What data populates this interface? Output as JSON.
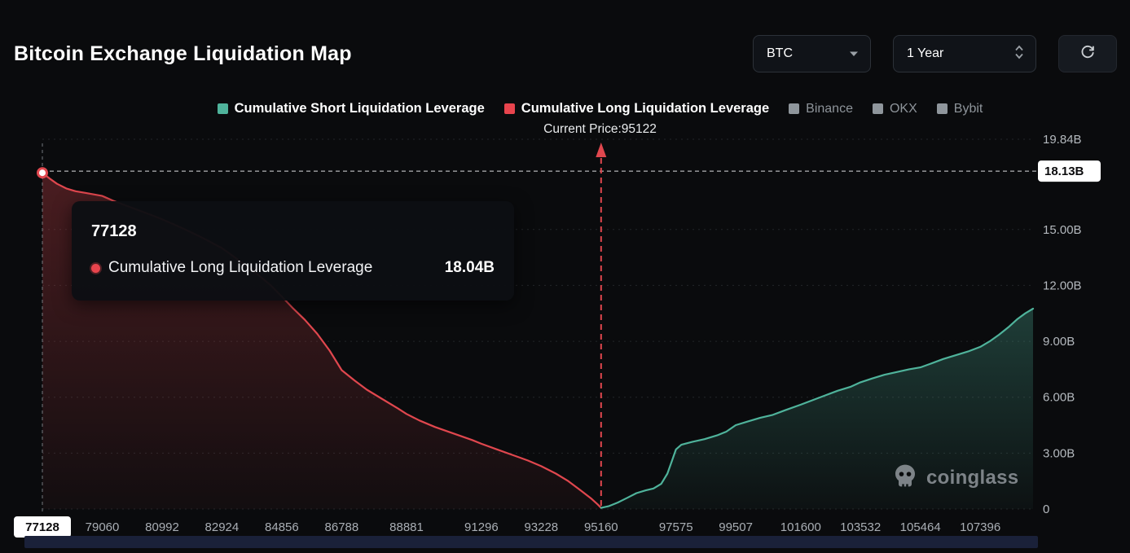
{
  "header": {
    "title": "Bitcoin Exchange Liquidation Map",
    "symbol_select": {
      "value": "BTC"
    },
    "range_select": {
      "value": "1 Year"
    }
  },
  "legend": {
    "series": [
      {
        "label": "Cumulative Short Liquidation Leverage",
        "color": "#4fb39b",
        "active": true
      },
      {
        "label": "Cumulative Long Liquidation Leverage",
        "color": "#e8444d",
        "active": true
      },
      {
        "label": "Binance",
        "color": "#8f969c",
        "active": false
      },
      {
        "label": "OKX",
        "color": "#8f969c",
        "active": false
      },
      {
        "label": "Bybit",
        "color": "#8f969c",
        "active": false
      }
    ],
    "current_price_label": "Current Price:95122"
  },
  "tooltip": {
    "title": "77128",
    "series_label": "Cumulative Long Liquidation Leverage",
    "value": "18.04B",
    "dot_color": "#e8444d"
  },
  "watermark": {
    "text": "coinglass"
  },
  "chart_data": {
    "type": "area",
    "title": "Bitcoin Exchange Liquidation Map",
    "x_domain": [
      77128,
      109100
    ],
    "y_domain": [
      0,
      19.84
    ],
    "x_ticks": [
      77128,
      79060,
      80992,
      82924,
      84856,
      86788,
      88881,
      91296,
      93228,
      95160,
      97575,
      99507,
      101600,
      103532,
      105464,
      107396
    ],
    "y_ticks": [
      {
        "value": 19.84,
        "label": "19.84B"
      },
      {
        "value": 15,
        "label": "15.00B"
      },
      {
        "value": 12,
        "label": "12.00B"
      },
      {
        "value": 9,
        "label": "9.00B"
      },
      {
        "value": 6,
        "label": "6.00B"
      },
      {
        "value": 3,
        "label": "3.00B"
      },
      {
        "value": 0,
        "label": "0"
      }
    ],
    "y_axis_badge": {
      "value": 18.13,
      "label": "18.13B"
    },
    "x_axis_badge": {
      "value": 77128,
      "label": "77128"
    },
    "current_price_line": {
      "value": 95160,
      "label": "Current Price:95122"
    },
    "marker": {
      "x": 77128,
      "y": 18.04
    },
    "series": [
      {
        "name": "Cumulative Long Liquidation Leverage",
        "color": "#e0474e",
        "points": [
          [
            77128,
            18.04
          ],
          [
            77350,
            17.75
          ],
          [
            77600,
            17.45
          ],
          [
            77900,
            17.2
          ],
          [
            78200,
            17.05
          ],
          [
            78550,
            16.95
          ],
          [
            79060,
            16.8
          ],
          [
            79400,
            16.55
          ],
          [
            79800,
            16.3
          ],
          [
            80200,
            16.05
          ],
          [
            80600,
            15.8
          ],
          [
            80992,
            15.55
          ],
          [
            81400,
            15.25
          ],
          [
            81800,
            14.95
          ],
          [
            82300,
            14.55
          ],
          [
            82924,
            14.0
          ],
          [
            83300,
            13.55
          ],
          [
            83700,
            13.05
          ],
          [
            84100,
            12.55
          ],
          [
            84500,
            12.0
          ],
          [
            84856,
            11.4
          ],
          [
            85200,
            10.8
          ],
          [
            85600,
            10.15
          ],
          [
            86000,
            9.4
          ],
          [
            86400,
            8.5
          ],
          [
            86788,
            7.45
          ],
          [
            87200,
            6.9
          ],
          [
            87600,
            6.4
          ],
          [
            88100,
            5.9
          ],
          [
            88600,
            5.4
          ],
          [
            88881,
            5.1
          ],
          [
            89300,
            4.75
          ],
          [
            89800,
            4.4
          ],
          [
            90400,
            4.05
          ],
          [
            91000,
            3.7
          ],
          [
            91296,
            3.5
          ],
          [
            91800,
            3.2
          ],
          [
            92300,
            2.9
          ],
          [
            92800,
            2.6
          ],
          [
            93228,
            2.3
          ],
          [
            93700,
            1.9
          ],
          [
            94100,
            1.5
          ],
          [
            94500,
            1.0
          ],
          [
            94850,
            0.55
          ],
          [
            95050,
            0.25
          ],
          [
            95160,
            0.06
          ]
        ]
      },
      {
        "name": "Cumulative Short Liquidation Leverage",
        "color": "#4fb39b",
        "points": [
          [
            95160,
            0.06
          ],
          [
            95400,
            0.15
          ],
          [
            95700,
            0.35
          ],
          [
            96000,
            0.6
          ],
          [
            96300,
            0.85
          ],
          [
            96600,
            1.0
          ],
          [
            96850,
            1.1
          ],
          [
            97100,
            1.35
          ],
          [
            97300,
            1.9
          ],
          [
            97450,
            2.6
          ],
          [
            97575,
            3.2
          ],
          [
            97750,
            3.45
          ],
          [
            98100,
            3.6
          ],
          [
            98500,
            3.75
          ],
          [
            98900,
            3.95
          ],
          [
            99200,
            4.15
          ],
          [
            99507,
            4.5
          ],
          [
            99900,
            4.7
          ],
          [
            100300,
            4.9
          ],
          [
            100700,
            5.05
          ],
          [
            101100,
            5.3
          ],
          [
            101600,
            5.6
          ],
          [
            102000,
            5.85
          ],
          [
            102400,
            6.1
          ],
          [
            102800,
            6.35
          ],
          [
            103200,
            6.55
          ],
          [
            103532,
            6.8
          ],
          [
            103900,
            7.0
          ],
          [
            104300,
            7.2
          ],
          [
            104700,
            7.35
          ],
          [
            105100,
            7.5
          ],
          [
            105464,
            7.6
          ],
          [
            105800,
            7.8
          ],
          [
            106200,
            8.05
          ],
          [
            106600,
            8.25
          ],
          [
            107000,
            8.45
          ],
          [
            107396,
            8.7
          ],
          [
            107700,
            9.0
          ],
          [
            108000,
            9.35
          ],
          [
            108300,
            9.75
          ],
          [
            108600,
            10.2
          ],
          [
            108850,
            10.5
          ],
          [
            109100,
            10.75
          ]
        ]
      }
    ]
  }
}
